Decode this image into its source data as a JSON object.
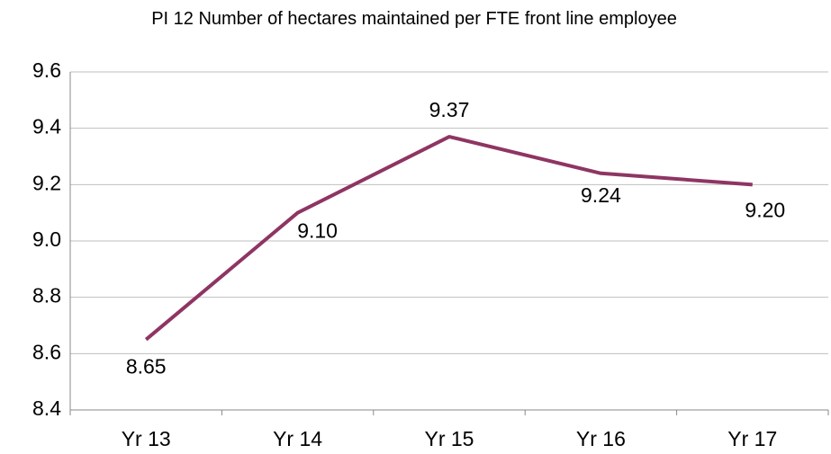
{
  "chart_data": {
    "type": "line",
    "title": "PI 12 Number  of hectares maintained per FTE front line employee",
    "categories": [
      "Yr 13",
      "Yr 14",
      "Yr 15",
      "Yr 16",
      "Yr 17"
    ],
    "series": [
      {
        "name": "PI 12",
        "color": "#8e3563",
        "values": [
          8.65,
          9.1,
          9.37,
          9.24,
          9.2
        ],
        "value_labels": [
          "8.65",
          "9.10",
          "9.37",
          "9.24",
          "9.20"
        ]
      }
    ],
    "ylim": [
      8.4,
      9.6
    ],
    "yticks": [
      8.4,
      8.6,
      8.8,
      {
        "value": 9,
        "label": "9.0"
      },
      9.2,
      9.4,
      9.6
    ],
    "grid": true
  }
}
